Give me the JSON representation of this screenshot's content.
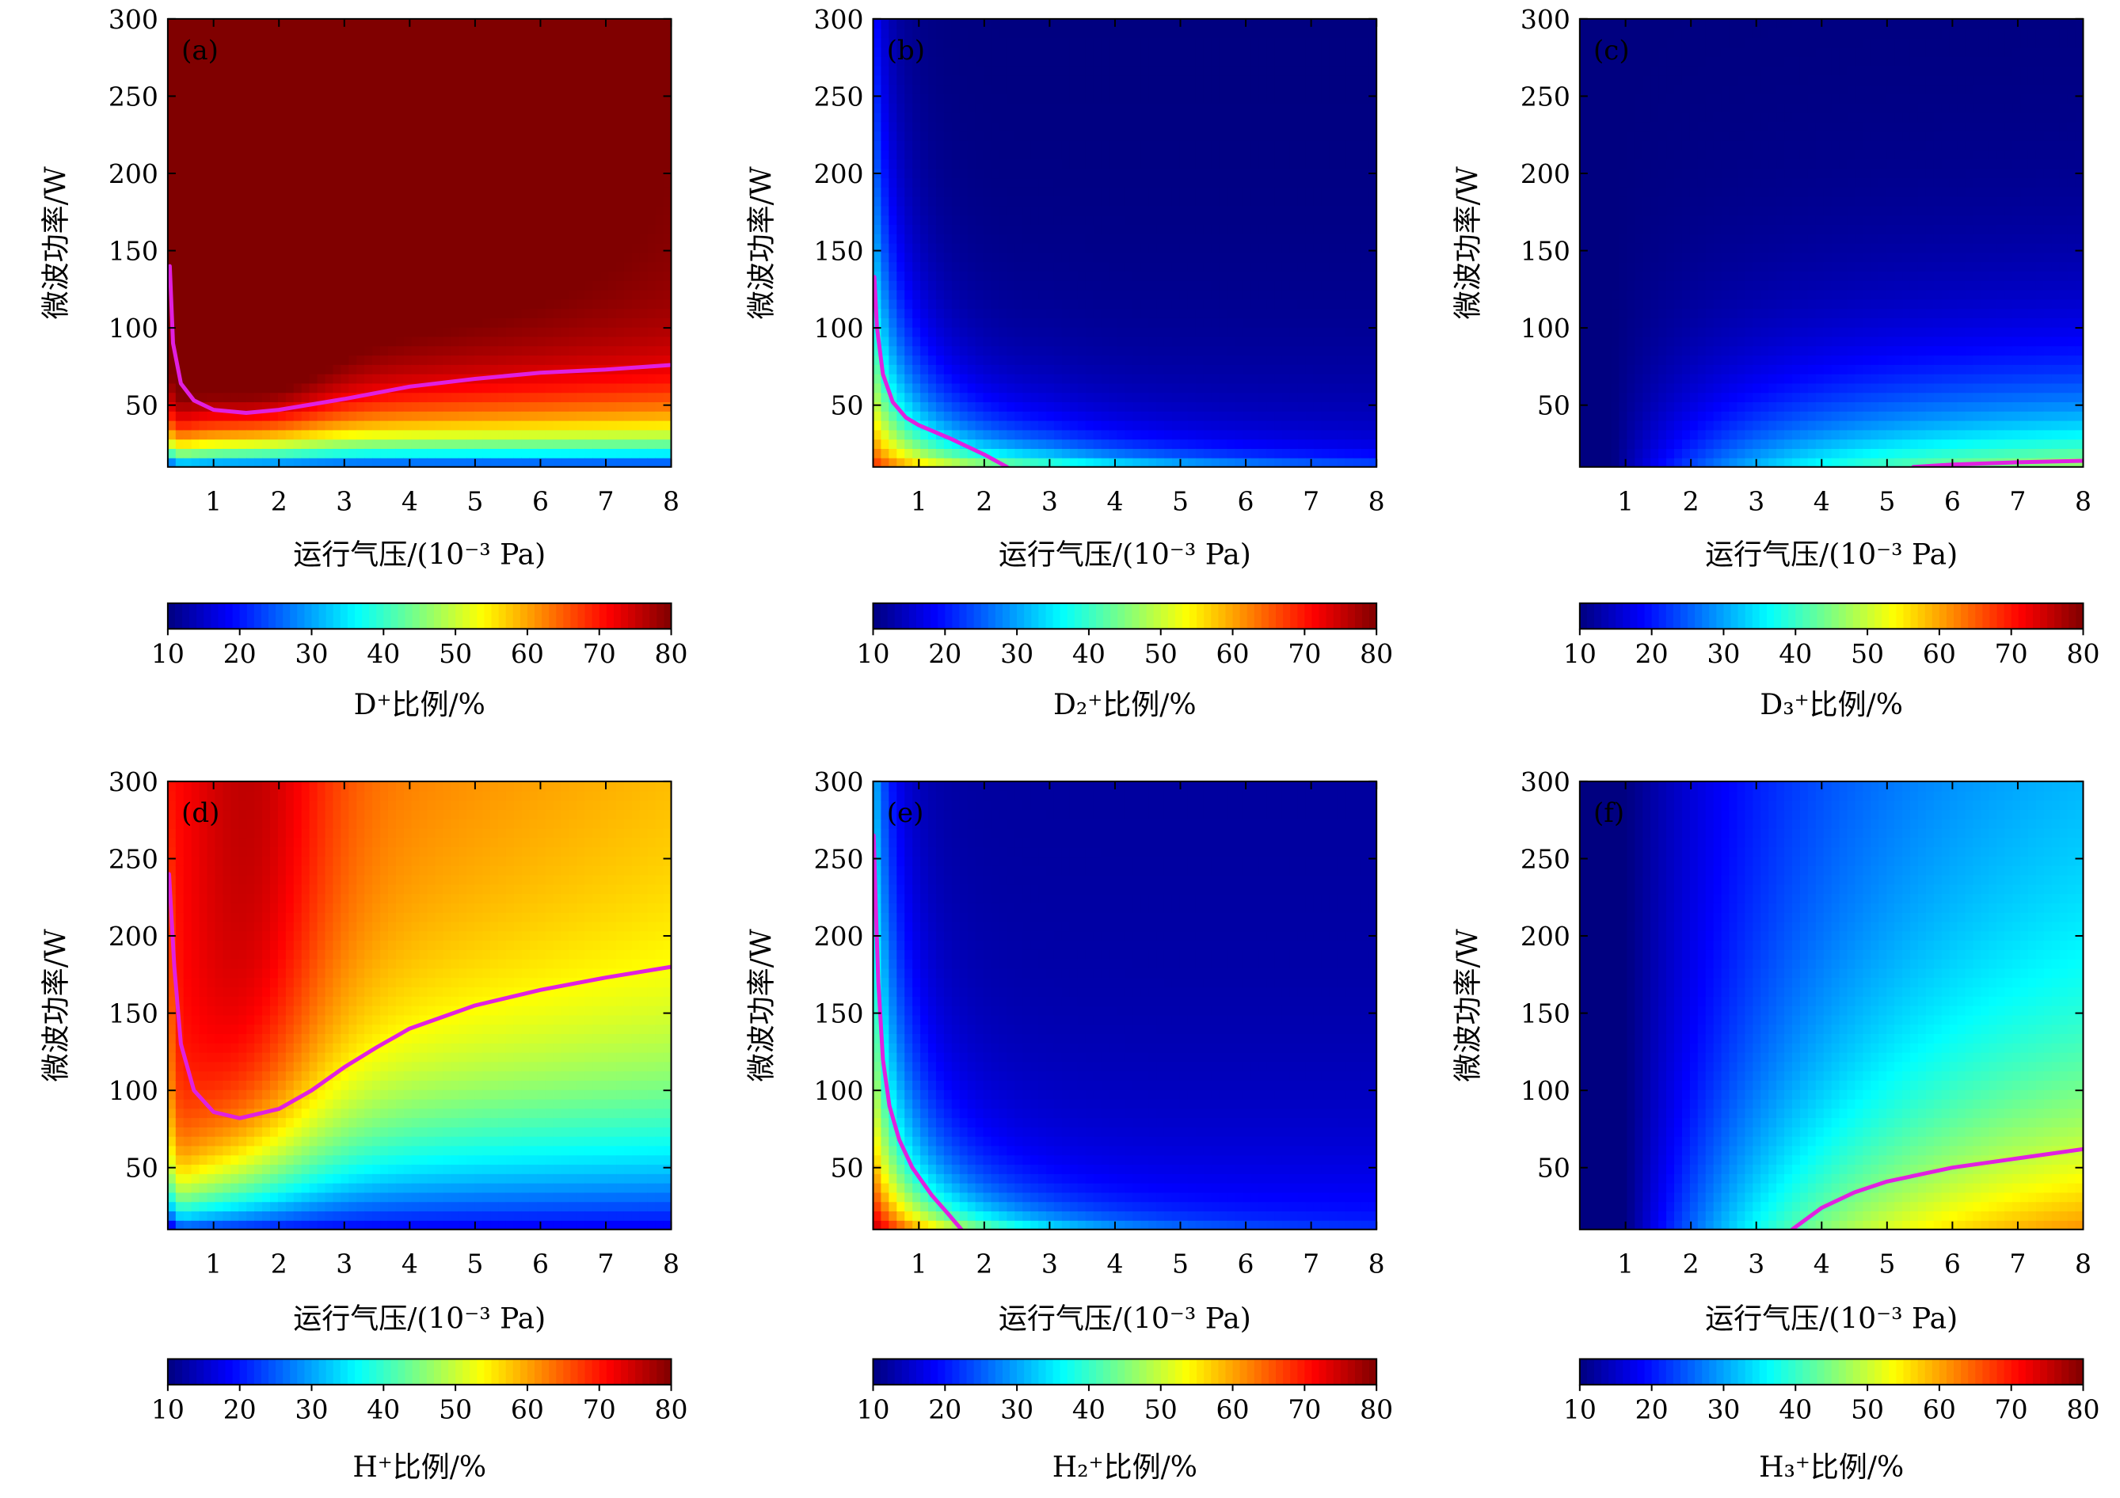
{
  "chart_data": {
    "type": "heatmap",
    "x_range": [
      0.3,
      8
    ],
    "y_range": [
      10,
      300
    ],
    "x_ticks": [
      1,
      2,
      3,
      4,
      5,
      6,
      7,
      8
    ],
    "y_ticks": [
      50,
      100,
      150,
      200,
      250,
      300
    ],
    "xlabel": "运行气压/(10⁻³ Pa)",
    "ylabel": "微波功率/W",
    "colorbar": {
      "range": [
        10,
        80
      ],
      "ticks": [
        10,
        20,
        30,
        40,
        50,
        60,
        70,
        80
      ],
      "colormap": "jet"
    },
    "contour_color": "#e020e0",
    "panels": [
      {
        "label": "(a)",
        "species": "D⁺",
        "unit_label": "比例/%",
        "description": "D+ fraction",
        "contour_level": 50,
        "contour": [
          [
            0.33,
            140
          ],
          [
            0.38,
            90
          ],
          [
            0.5,
            64
          ],
          [
            0.7,
            53
          ],
          [
            1.0,
            47
          ],
          [
            1.5,
            45
          ],
          [
            2.0,
            47
          ],
          [
            3.0,
            54
          ],
          [
            4.0,
            62
          ],
          [
            5.0,
            67
          ],
          [
            6.0,
            71
          ],
          [
            7.0,
            73
          ],
          [
            8.0,
            76
          ]
        ]
      },
      {
        "label": "(b)",
        "species": "D₂⁺",
        "unit_label": "比例/%",
        "description": "D2+ fraction",
        "contour_level": 50,
        "contour": [
          [
            0.32,
            133
          ],
          [
            0.36,
            100
          ],
          [
            0.45,
            70
          ],
          [
            0.6,
            52
          ],
          [
            0.8,
            42
          ],
          [
            1.0,
            37
          ],
          [
            1.5,
            28
          ],
          [
            2.0,
            18
          ],
          [
            2.35,
            10
          ]
        ]
      },
      {
        "label": "(c)",
        "species": "D₃⁺",
        "unit_label": "比例/%",
        "description": "D3+ fraction",
        "contour_level": 50,
        "contour": [
          [
            5.4,
            10
          ],
          [
            6.0,
            11.5
          ],
          [
            7.0,
            13
          ],
          [
            8.0,
            14
          ]
        ]
      },
      {
        "label": "(d)",
        "species": "H⁺",
        "unit_label": "比例/%",
        "description": "H+ fraction",
        "contour_level": 60,
        "contour": [
          [
            0.32,
            240
          ],
          [
            0.4,
            180
          ],
          [
            0.5,
            130
          ],
          [
            0.7,
            100
          ],
          [
            1.0,
            86
          ],
          [
            1.4,
            82
          ],
          [
            2.0,
            88
          ],
          [
            2.5,
            100
          ],
          [
            3.0,
            115
          ],
          [
            3.5,
            128
          ],
          [
            4.0,
            140
          ],
          [
            5.0,
            155
          ],
          [
            6.0,
            165
          ],
          [
            7.0,
            173
          ],
          [
            8.0,
            180
          ]
        ]
      },
      {
        "label": "(e)",
        "species": "H₂⁺",
        "unit_label": "比例/%",
        "description": "H2+ fraction",
        "contour_level": 50,
        "contour": [
          [
            0.31,
            265
          ],
          [
            0.34,
            220
          ],
          [
            0.38,
            170
          ],
          [
            0.45,
            120
          ],
          [
            0.55,
            90
          ],
          [
            0.7,
            68
          ],
          [
            0.9,
            50
          ],
          [
            1.2,
            32
          ],
          [
            1.45,
            20
          ],
          [
            1.65,
            10
          ]
        ]
      },
      {
        "label": "(f)",
        "species": "H₃⁺",
        "unit_label": "比例/%",
        "description": "H3+ fraction",
        "contour_level": 50,
        "contour": [
          [
            3.55,
            10
          ],
          [
            4.0,
            24
          ],
          [
            4.5,
            34
          ],
          [
            5.0,
            41
          ],
          [
            6.0,
            50
          ],
          [
            7.0,
            56
          ],
          [
            8.0,
            62
          ]
        ]
      }
    ]
  }
}
